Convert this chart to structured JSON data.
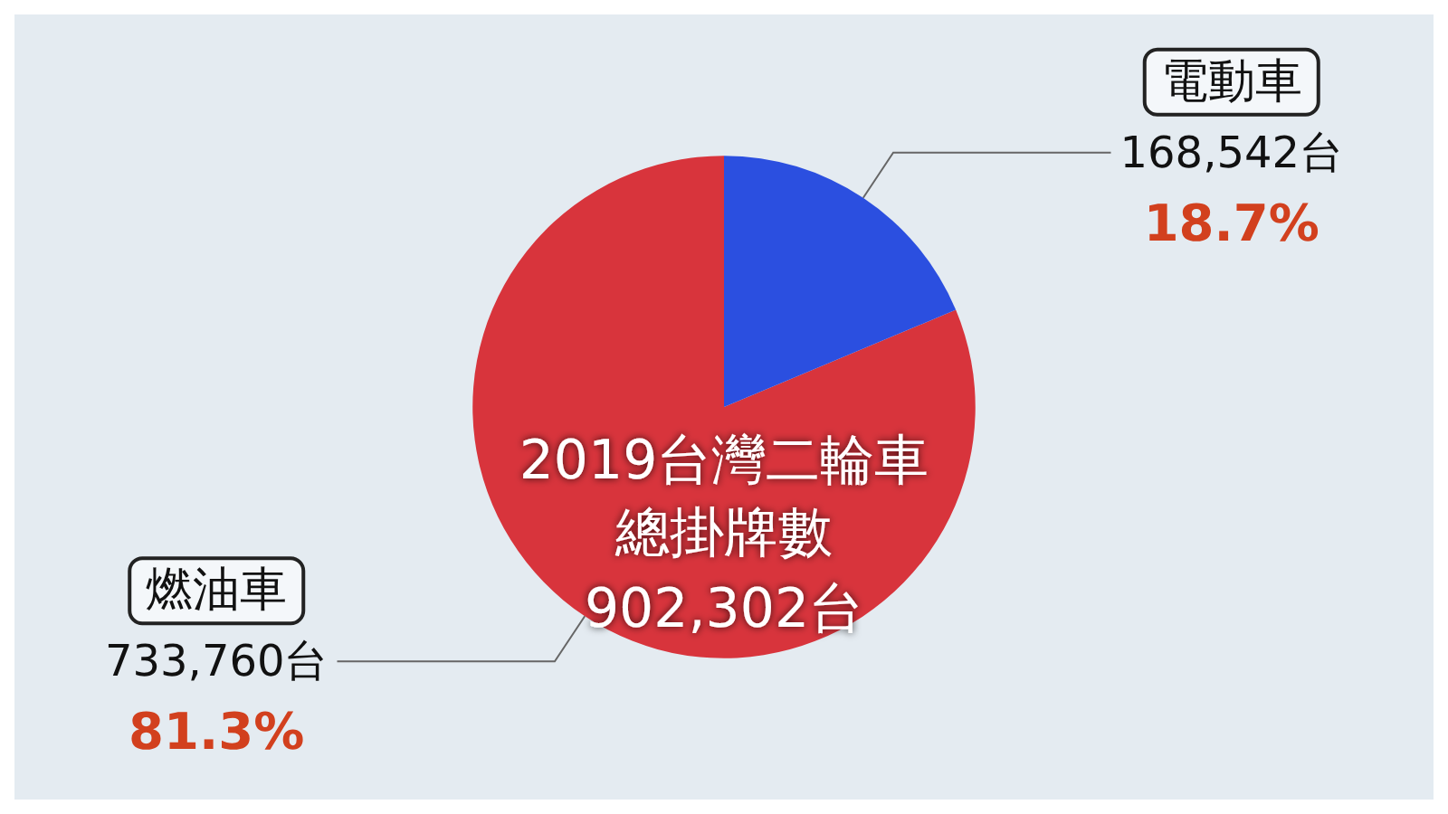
{
  "chart_data": {
    "type": "pie",
    "title": "2019台灣二輪車總掛牌數",
    "subtitle": "902,302台",
    "categories": [
      "燃油車",
      "電動車"
    ],
    "values": [
      733760,
      168542
    ],
    "colors": [
      "#d8343c",
      "#2b4fe0"
    ],
    "value_labels": [
      "733,760台",
      "168,542台"
    ],
    "annotations": [
      "81.3%",
      "18.7%"
    ],
    "legend": false
  }
}
